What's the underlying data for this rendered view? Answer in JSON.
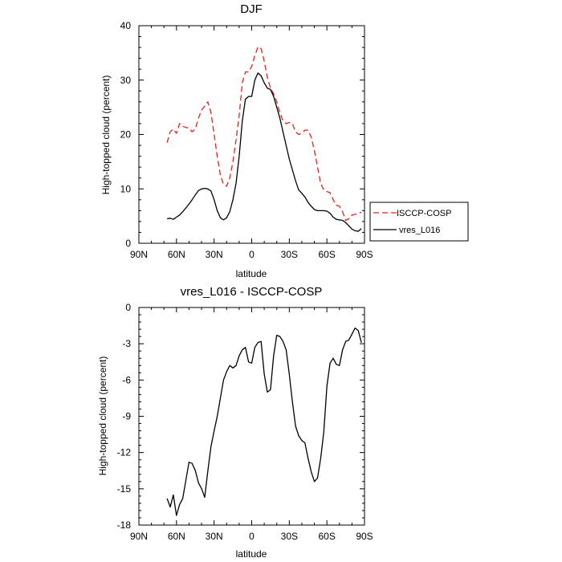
{
  "chart_data": [
    {
      "type": "line",
      "title": "DJF",
      "xlabel": "latitude",
      "ylabel": "High-topped cloud (percent)",
      "xlim": [
        -90,
        90
      ],
      "ylim": [
        0,
        40
      ],
      "xticks": [
        -90,
        -60,
        -30,
        0,
        30,
        60,
        90
      ],
      "xtick_labels": [
        "90N",
        "60N",
        "30N",
        "0",
        "30S",
        "60S",
        "90S"
      ],
      "yticks": [
        0,
        10,
        20,
        30,
        40
      ],
      "ytick_labels": [
        "0",
        "10",
        "20",
        "30",
        "40"
      ],
      "legend": {
        "placement": "right",
        "entries": [
          "ISCCP-COSP",
          "vres_L016"
        ]
      },
      "series": [
        {
          "name": "ISCCP-COSP",
          "color": "#e8201a",
          "dash": "dashed",
          "x": [
            -67.5,
            -65,
            -62.5,
            -60,
            -57.5,
            -55,
            -52.5,
            -50,
            -47.5,
            -45,
            -42.5,
            -40,
            -37.5,
            -35,
            -32.5,
            -30,
            -27.5,
            -25,
            -22.5,
            -20,
            -17.5,
            -15,
            -12.5,
            -10,
            -7.5,
            -5,
            -2.5,
            0,
            2.5,
            5,
            7.5,
            10,
            12.5,
            15,
            17.5,
            20,
            22.5,
            25,
            27.5,
            30,
            32.5,
            35,
            37.5,
            40,
            42.5,
            45,
            47.5,
            50,
            52.5,
            55,
            57.5,
            60,
            62.5,
            65,
            67.5,
            70,
            72.5,
            75,
            77.5,
            80,
            82.5,
            85,
            87.5
          ],
          "y": [
            18.5,
            20.5,
            21,
            20.2,
            22,
            21.5,
            21.3,
            21.2,
            20.5,
            21,
            23,
            24.5,
            25.2,
            26,
            24,
            20,
            16,
            12.5,
            10.8,
            10.5,
            12,
            15,
            19,
            23.5,
            29.5,
            31.5,
            31.5,
            32.5,
            34.5,
            36.1,
            35.8,
            33.5,
            30.5,
            28.5,
            27.5,
            26,
            24,
            22.5,
            22,
            22.2,
            22,
            20.5,
            20,
            20.2,
            20.8,
            20.8,
            19.5,
            17,
            14,
            11,
            9.8,
            9.5,
            9.3,
            8,
            7,
            6.8,
            5.8,
            4.2,
            4.5,
            5.2,
            5.3,
            5.5,
            5.7
          ]
        },
        {
          "name": "vres_L016",
          "color": "#000000",
          "dash": "solid",
          "x": [
            -67.5,
            -65,
            -62.5,
            -60,
            -57.5,
            -55,
            -52.5,
            -50,
            -47.5,
            -45,
            -42.5,
            -40,
            -37.5,
            -35,
            -32.5,
            -30,
            -27.5,
            -25,
            -22.5,
            -20,
            -17.5,
            -15,
            -12.5,
            -10,
            -7.5,
            -5,
            -2.5,
            0,
            2.5,
            5,
            7.5,
            10,
            12.5,
            15,
            17.5,
            20,
            22.5,
            25,
            27.5,
            30,
            32.5,
            35,
            37.5,
            40,
            42.5,
            45,
            47.5,
            50,
            52.5,
            55,
            57.5,
            60,
            62.5,
            65,
            67.5,
            70,
            72.5,
            75,
            77.5,
            80,
            82.5,
            85,
            87.5
          ],
          "y": [
            4.5,
            4.6,
            4.4,
            4.8,
            5.2,
            5.8,
            6.5,
            7.2,
            8,
            8.9,
            9.7,
            10,
            10.1,
            10,
            9.6,
            8,
            6,
            4.7,
            4.3,
            4.7,
            5.8,
            8,
            11,
            16,
            22.5,
            26.5,
            27,
            27,
            30,
            31.3,
            30.8,
            29.5,
            28.5,
            28.3,
            27,
            25,
            23,
            20.5,
            18,
            15.5,
            13.5,
            11.5,
            9.8,
            9.2,
            8.5,
            7.5,
            6.8,
            6.2,
            6,
            6,
            6,
            5.9,
            5.5,
            4.8,
            4.4,
            4.3,
            4.2,
            3.8,
            3.2,
            2.6,
            2.3,
            2.2,
            2.7
          ]
        }
      ]
    },
    {
      "type": "line",
      "title": "vres_L016 - ISCCP-COSP",
      "xlabel": "latitude",
      "ylabel": "High-topped cloud (percent)",
      "xlim": [
        -90,
        90
      ],
      "ylim": [
        -18,
        0
      ],
      "xticks": [
        -90,
        -60,
        -30,
        0,
        30,
        60,
        90
      ],
      "xtick_labels": [
        "90N",
        "60N",
        "30N",
        "0",
        "30S",
        "60S",
        "90S"
      ],
      "yticks": [
        -18,
        -15,
        -12,
        -9,
        -6,
        -3,
        0
      ],
      "ytick_labels": [
        "-18",
        "-15",
        "-12",
        "-9",
        "-6",
        "-3",
        "0"
      ],
      "series": [
        {
          "name": "vres_L016 - ISCCP-COSP",
          "color": "#000000",
          "dash": "solid",
          "x": [
            -67.5,
            -65,
            -62.5,
            -60,
            -57.5,
            -55,
            -52.5,
            -50,
            -47.5,
            -45,
            -42.5,
            -40,
            -37.5,
            -35,
            -32.5,
            -30,
            -27.5,
            -25,
            -22.5,
            -20,
            -17.5,
            -15,
            -12.5,
            -10,
            -7.5,
            -5,
            -2.5,
            0,
            2.5,
            5,
            7.5,
            10,
            12.5,
            15,
            17.5,
            20,
            22.5,
            25,
            27.5,
            30,
            32.5,
            35,
            37.5,
            40,
            42.5,
            45,
            47.5,
            50,
            52.5,
            55,
            57.5,
            60,
            62.5,
            65,
            67.5,
            70,
            72.5,
            75,
            77.5,
            80,
            82.5,
            85,
            87.5
          ],
          "y": [
            -15.8,
            -16.5,
            -15.5,
            -17.2,
            -16.3,
            -15.8,
            -14.3,
            -12.8,
            -12.9,
            -13.5,
            -14.5,
            -15,
            -15.7,
            -13.5,
            -11.5,
            -10.2,
            -9,
            -7.5,
            -6,
            -5.3,
            -4.8,
            -5,
            -4.8,
            -4,
            -3.5,
            -3.3,
            -4.5,
            -4.6,
            -3.3,
            -2.9,
            -2.8,
            -5.5,
            -7,
            -6.8,
            -4,
            -2.3,
            -2.4,
            -2.8,
            -3.5,
            -5.5,
            -7.8,
            -9.8,
            -10.6,
            -11,
            -11.2,
            -12.5,
            -13.6,
            -14.4,
            -14.1,
            -12.5,
            -10.3,
            -6.5,
            -4.6,
            -4.2,
            -4.7,
            -4.8,
            -3.5,
            -2.8,
            -2.7,
            -2.2,
            -1.7,
            -1.9,
            -2.9
          ]
        }
      ]
    }
  ]
}
